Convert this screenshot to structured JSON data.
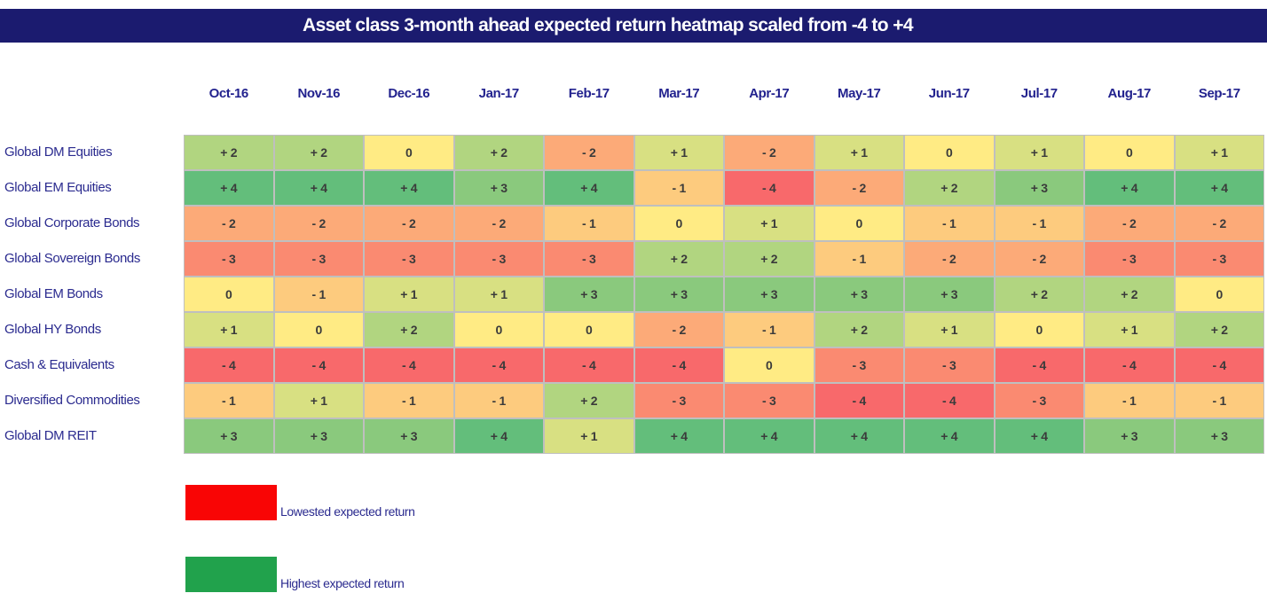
{
  "chart_data": {
    "type": "heatmap",
    "title": "Asset class 3-month ahead expected return heatmap scaled from -4 to +4",
    "x_labels": [
      "Oct-16",
      "Nov-16",
      "Dec-16",
      "Jan-17",
      "Feb-17",
      "Mar-17",
      "Apr-17",
      "May-17",
      "Jun-17",
      "Jul-17",
      "Aug-17",
      "Sep-17"
    ],
    "y_labels": [
      "Global DM Equities",
      "Global EM Equities",
      "Global Corporate Bonds",
      "Global Sovereign Bonds",
      "Global EM Bonds",
      "Global HY Bonds",
      "Cash & Equivalents",
      "Diversified Commodities",
      "Global DM REIT"
    ],
    "values": [
      [
        2,
        2,
        0,
        2,
        -2,
        1,
        -2,
        1,
        0,
        1,
        0,
        1
      ],
      [
        4,
        4,
        4,
        3,
        4,
        -1,
        -4,
        -2,
        2,
        3,
        4,
        4
      ],
      [
        -2,
        -2,
        -2,
        -2,
        -1,
        0,
        1,
        0,
        -1,
        -1,
        -2,
        -2
      ],
      [
        -3,
        -3,
        -3,
        -3,
        -3,
        2,
        2,
        -1,
        -2,
        -2,
        -3,
        -3
      ],
      [
        0,
        -1,
        1,
        1,
        3,
        3,
        3,
        3,
        3,
        2,
        2,
        0
      ],
      [
        1,
        0,
        2,
        0,
        0,
        -2,
        -1,
        2,
        1,
        0,
        1,
        2
      ],
      [
        -4,
        -4,
        -4,
        -4,
        -4,
        -4,
        0,
        -3,
        -3,
        -4,
        -4,
        -4
      ],
      [
        -1,
        1,
        -1,
        -1,
        2,
        -3,
        -3,
        -4,
        -4,
        -3,
        -1,
        -1
      ],
      [
        3,
        3,
        3,
        4,
        1,
        4,
        4,
        4,
        4,
        4,
        3,
        3
      ]
    ],
    "scale": {
      "min": -4,
      "max": 4,
      "colors": {
        "-4": "#F8696B",
        "-3": "#FA8A71",
        "-2": "#FCAA78",
        "-1": "#FDCB7E",
        "0": "#FFEB84",
        "1": "#D8E082",
        "2": "#B1D580",
        "3": "#8AC97D",
        "4": "#63BE7B"
      }
    },
    "legend": [
      {
        "label": "Lowested expected return",
        "color": "#F90505"
      },
      {
        "label": "Highest expected return",
        "color": "#21A24C"
      }
    ],
    "layout": {
      "title_bg": "#1B1B6F",
      "header_text_color": "#22228E",
      "gridline_color": "#BFBFBF",
      "legend_position": "bottom-left",
      "grid": true
    }
  }
}
